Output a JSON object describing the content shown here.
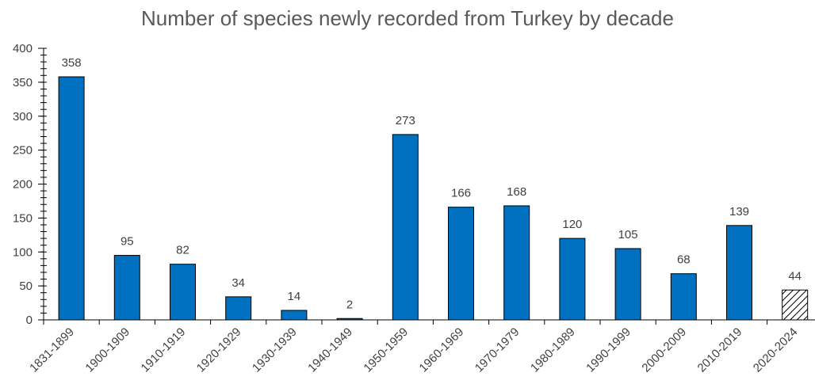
{
  "chart_data": {
    "type": "bar",
    "title": "Number of species newly recorded from Turkey by decade",
    "xlabel": "",
    "ylabel": "",
    "categories": [
      "1831-1899",
      "1900-1909",
      "1910-1919",
      "1920-1929",
      "1930-1939",
      "1940-1949",
      "1950-1959",
      "1960-1969",
      "1970-1979",
      "1980-1989",
      "1990-1999",
      "2000-2009",
      "2010-2019",
      "2020-2024"
    ],
    "values": [
      358,
      95,
      82,
      34,
      14,
      2,
      273,
      166,
      168,
      120,
      105,
      68,
      139,
      44
    ],
    "ylim": [
      0,
      400
    ],
    "yticks": [
      0,
      50,
      100,
      150,
      200,
      250,
      300,
      350,
      400
    ],
    "minor_tick_step": 10,
    "grid": false,
    "legend": "none",
    "bar_color": "#0070C0",
    "hatched_categories": [
      "2020-2024"
    ],
    "data_labels": true
  }
}
